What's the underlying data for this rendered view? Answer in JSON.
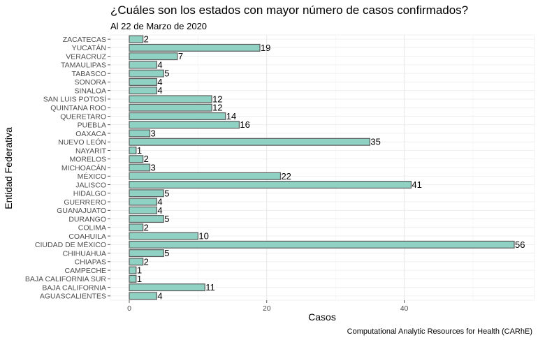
{
  "chart_data": {
    "type": "bar",
    "orientation": "horizontal",
    "title": "¿Cuáles son los estados con mayor número de casos confirmados?",
    "subtitle": "Al 22 de Marzo de 2020",
    "xlabel": "Casos",
    "ylabel": "Entidad Federativa",
    "caption": "Computational Analytic Resources for Health (CARhE)",
    "xlim": [
      0,
      58
    ],
    "xticks": [
      0,
      20,
      40
    ],
    "grid": true,
    "bar_color": "#8fd1c3",
    "bar_border": "#5a5a5a",
    "categories": [
      "AGUASCALIENTES",
      "BAJA CALIFORNIA",
      "BAJA CALIFORNIA SUR",
      "CAMPECHE",
      "CHIAPAS",
      "CHIHUAHUA",
      "CIUDAD DE MÉXICO",
      "COAHUILA",
      "COLIMA",
      "DURANGO",
      "GUANAJUATO",
      "GUERRERO",
      "HIDALGO",
      "JALISCO",
      "MÉXICO",
      "MICHOACÁN",
      "MORELOS",
      "NAYARIT",
      "NUEVO LEÓN",
      "OAXACA",
      "PUEBLA",
      "QUERETARO",
      "QUINTANA ROO",
      "SAN LUIS POTOSÍ",
      "SINALOA",
      "SONORA",
      "TABASCO",
      "TAMAULIPAS",
      "VERACRUZ",
      "YUCATÁN",
      "ZACATECAS"
    ],
    "values": [
      4,
      11,
      1,
      1,
      2,
      5,
      56,
      10,
      2,
      5,
      4,
      4,
      5,
      41,
      22,
      3,
      2,
      1,
      35,
      3,
      16,
      14,
      12,
      12,
      4,
      4,
      5,
      4,
      7,
      19,
      2
    ]
  }
}
